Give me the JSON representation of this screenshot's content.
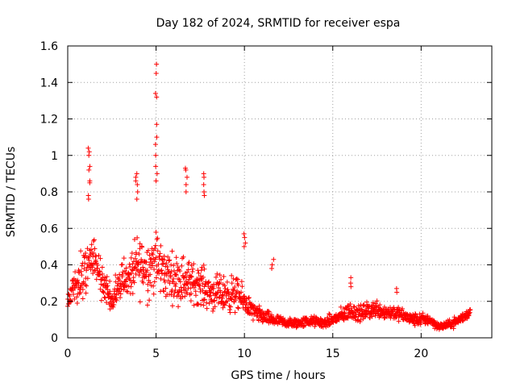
{
  "chart_data": {
    "type": "scatter",
    "title": "Day 182 of 2024, SRMTID for receiver espa",
    "xlabel": "GPS time / hours",
    "ylabel": "SRMTID / TECUs",
    "xlim": [
      0,
      24
    ],
    "ylim": [
      0,
      1.6
    ],
    "xticks": [
      "0",
      "5",
      "10",
      "15",
      "20"
    ],
    "yticks": [
      "0",
      "0.2",
      "0.4",
      "0.6",
      "0.8",
      "1",
      "1.2",
      "1.4",
      "1.6"
    ],
    "grid": true,
    "marker": "plus",
    "color": "#ff0000",
    "envelope_x": [
      0,
      0.5,
      1.0,
      1.5,
      2.0,
      2.5,
      3.0,
      3.5,
      4.0,
      4.5,
      5.0,
      5.5,
      6.0,
      6.5,
      7.0,
      7.5,
      8.0,
      8.5,
      9.0,
      9.5,
      10.0,
      10.5,
      11.0,
      11.5,
      12.0,
      12.5,
      13.0,
      13.5,
      14.0,
      14.5,
      15.0,
      15.5,
      16.0,
      16.5,
      17.0,
      17.5,
      18.0,
      18.5,
      19.0,
      19.5,
      20.0,
      20.5,
      21.0,
      21.5,
      22.0,
      22.5,
      22.8
    ],
    "envelope_center": [
      0.2,
      0.3,
      0.38,
      0.4,
      0.3,
      0.2,
      0.32,
      0.33,
      0.4,
      0.38,
      0.42,
      0.35,
      0.33,
      0.32,
      0.3,
      0.3,
      0.25,
      0.24,
      0.24,
      0.24,
      0.2,
      0.14,
      0.12,
      0.1,
      0.09,
      0.08,
      0.08,
      0.09,
      0.09,
      0.08,
      0.1,
      0.12,
      0.15,
      0.13,
      0.15,
      0.16,
      0.14,
      0.14,
      0.12,
      0.1,
      0.1,
      0.1,
      0.06,
      0.07,
      0.09,
      0.12,
      0.15
    ],
    "envelope_spread": [
      0.08,
      0.16,
      0.2,
      0.18,
      0.12,
      0.1,
      0.14,
      0.16,
      0.25,
      0.24,
      0.25,
      0.2,
      0.18,
      0.2,
      0.16,
      0.16,
      0.14,
      0.14,
      0.14,
      0.14,
      0.1,
      0.07,
      0.06,
      0.05,
      0.04,
      0.04,
      0.04,
      0.04,
      0.04,
      0.04,
      0.05,
      0.06,
      0.07,
      0.06,
      0.07,
      0.07,
      0.06,
      0.06,
      0.05,
      0.05,
      0.05,
      0.04,
      0.03,
      0.03,
      0.04,
      0.04,
      0.04
    ],
    "peaks": [
      {
        "x": 1.2,
        "y": [
          1.04,
          1.02,
          1.0,
          0.94,
          0.92,
          0.86,
          0.85,
          0.78,
          0.76
        ]
      },
      {
        "x": 3.9,
        "y": [
          0.9,
          0.88,
          0.86,
          0.84,
          0.8,
          0.76
        ]
      },
      {
        "x": 5.0,
        "y": [
          1.5,
          1.45,
          1.34,
          1.32,
          1.17,
          1.1,
          1.06,
          1.0,
          0.94,
          0.9,
          0.86
        ]
      },
      {
        "x": 6.7,
        "y": [
          0.93,
          0.92,
          0.88,
          0.84,
          0.8
        ]
      },
      {
        "x": 7.7,
        "y": [
          0.9,
          0.88,
          0.84,
          0.8,
          0.78
        ]
      },
      {
        "x": 10.0,
        "y": [
          0.57,
          0.55,
          0.52,
          0.5
        ]
      },
      {
        "x": 11.6,
        "y": [
          0.43,
          0.4,
          0.38
        ]
      },
      {
        "x": 16.0,
        "y": [
          0.33,
          0.3,
          0.28
        ]
      },
      {
        "x": 18.6,
        "y": [
          0.27,
          0.25
        ]
      }
    ],
    "n_points": 1500
  }
}
